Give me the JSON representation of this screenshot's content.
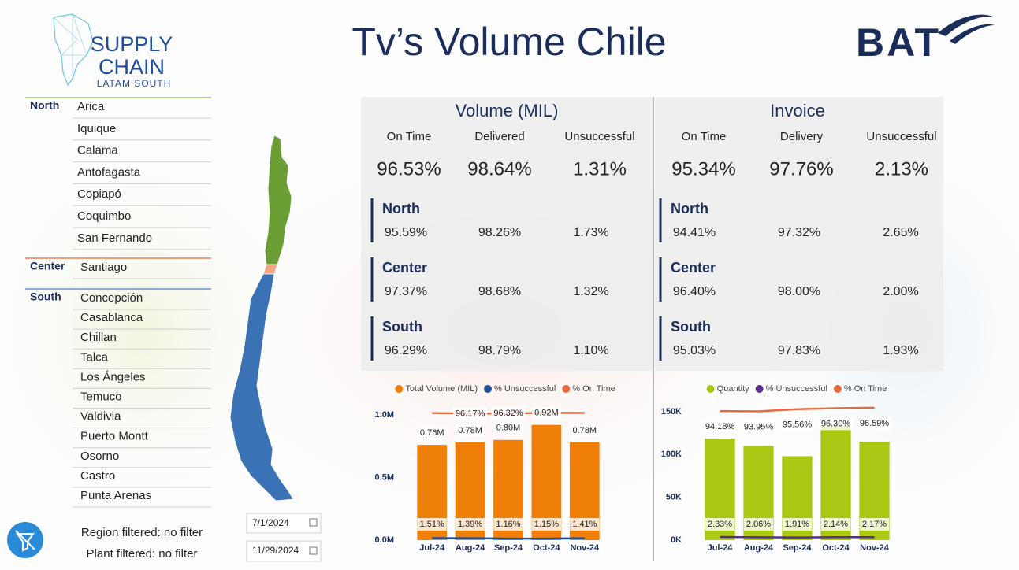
{
  "header": {
    "title": "Tv’s Volume Chile",
    "logo": {
      "line1": "SUPPLY",
      "line2": "CHAIN",
      "line3": "LATAM SOUTH"
    },
    "brand": "BAT"
  },
  "regions": [
    {
      "name": "North",
      "plants": [
        "Arica",
        "Iquique",
        "Calama",
        "Antofagasta",
        "Copiapó",
        "Coquimbo",
        "San Fernando"
      ]
    },
    {
      "name": "Center",
      "plants": [
        "Santiago"
      ]
    },
    {
      "name": "South",
      "plants": [
        "Concepción",
        "Casablanca",
        "Chillan",
        "Talca",
        "Los Ángeles",
        "Temuco",
        "Valdivia",
        "Puerto Montt",
        "Osorno",
        "Castro",
        "Punta Arenas"
      ]
    }
  ],
  "filters": {
    "region": "Region filtered: no filter",
    "plant": "Plant filtered: no filter"
  },
  "dates": {
    "start": "7/1/2024",
    "end": "11/29/2024"
  },
  "panels": [
    {
      "title": "Volume (MIL)",
      "labels": [
        "On Time",
        "Delivered",
        "Unsuccessful"
      ],
      "totals": [
        "96.53%",
        "98.64%",
        "1.31%"
      ],
      "rows": [
        {
          "name": "North",
          "values": [
            "95.59%",
            "98.26%",
            "1.73%"
          ]
        },
        {
          "name": "Center",
          "values": [
            "97.37%",
            "98.68%",
            "1.32%"
          ]
        },
        {
          "name": "South",
          "values": [
            "96.29%",
            "98.79%",
            "1.10%"
          ]
        }
      ]
    },
    {
      "title": "Invoice",
      "labels": [
        "On Time",
        "Delivery",
        "Unsuccessful"
      ],
      "totals": [
        "95.34%",
        "97.76%",
        "2.13%"
      ],
      "rows": [
        {
          "name": "North",
          "values": [
            "94.41%",
            "97.32%",
            "2.65%"
          ]
        },
        {
          "name": "Center",
          "values": [
            "96.40%",
            "98.00%",
            "2.00%"
          ]
        },
        {
          "name": "South",
          "values": [
            "95.03%",
            "97.83%",
            "1.93%"
          ]
        }
      ]
    }
  ],
  "chart_data": [
    {
      "type": "combo",
      "categories": [
        "Jul-24",
        "Aug-24",
        "Sep-24",
        "Oct-24",
        "Nov-24"
      ],
      "ylim": [
        0,
        1050000
      ],
      "yticks": [
        {
          "value": 0,
          "label": "0.0M"
        },
        {
          "value": 500000,
          "label": "0.5M"
        },
        {
          "value": 1000000,
          "label": "1.0M"
        }
      ],
      "y2lim": [
        0,
        100
      ],
      "legend": "top",
      "series": [
        {
          "name": "Total Volume (MIL)",
          "type": "bar",
          "color": "#f07f09",
          "values": [
            760000,
            780000,
            800000,
            920000,
            780000
          ],
          "value_labels": [
            "0.76M",
            "0.78M",
            "0.80M",
            "0.92M",
            "0.78M"
          ]
        },
        {
          "name": "% Unsuccessful",
          "type": "line",
          "axis": "y2",
          "color": "#1f4e9c",
          "values": [
            1.51,
            1.39,
            1.16,
            1.15,
            1.41
          ],
          "value_labels": [
            "1.51%",
            "1.39%",
            "1.16%",
            "1.15%",
            "1.41%"
          ]
        },
        {
          "name": "% On Time",
          "type": "line",
          "axis": "y2",
          "color": "#e8693a",
          "values": [
            96.6,
            96.17,
            96.32,
            96.8,
            96.7
          ],
          "value_labels": [
            null,
            "96.17%",
            "96.32%",
            null,
            null
          ]
        }
      ]
    },
    {
      "type": "combo",
      "categories": [
        "Jul-24",
        "Aug-24",
        "Sep-24",
        "Oct-24",
        "Nov-24"
      ],
      "ylim": [
        0,
        160000
      ],
      "yticks": [
        {
          "value": 0,
          "label": "0K"
        },
        {
          "value": 50000,
          "label": "50K"
        },
        {
          "value": 100000,
          "label": "100K"
        },
        {
          "value": 150000,
          "label": "150K"
        }
      ],
      "y2lim": [
        0,
        100
      ],
      "legend": "top",
      "series": [
        {
          "name": "Quantity",
          "type": "bar",
          "color": "#a8c813",
          "values": [
            118700,
            110000,
            98000,
            133000,
            115000
          ]
        },
        {
          "name": "% Unsuccessful",
          "type": "line",
          "axis": "y2",
          "color": "#5b2d8e",
          "values": [
            2.33,
            2.06,
            1.91,
            2.14,
            2.17
          ],
          "value_labels": [
            "2.33%",
            "2.06%",
            "1.91%",
            "2.14%",
            "2.17%"
          ]
        },
        {
          "name": "% On Time",
          "type": "line",
          "axis": "y2",
          "color": "#e8693a",
          "values": [
            94.18,
            93.95,
            95.56,
            96.3,
            96.59
          ],
          "value_labels": [
            "94.18%",
            "93.95%",
            "95.56%",
            "96.30%",
            "96.59%"
          ]
        }
      ]
    }
  ]
}
